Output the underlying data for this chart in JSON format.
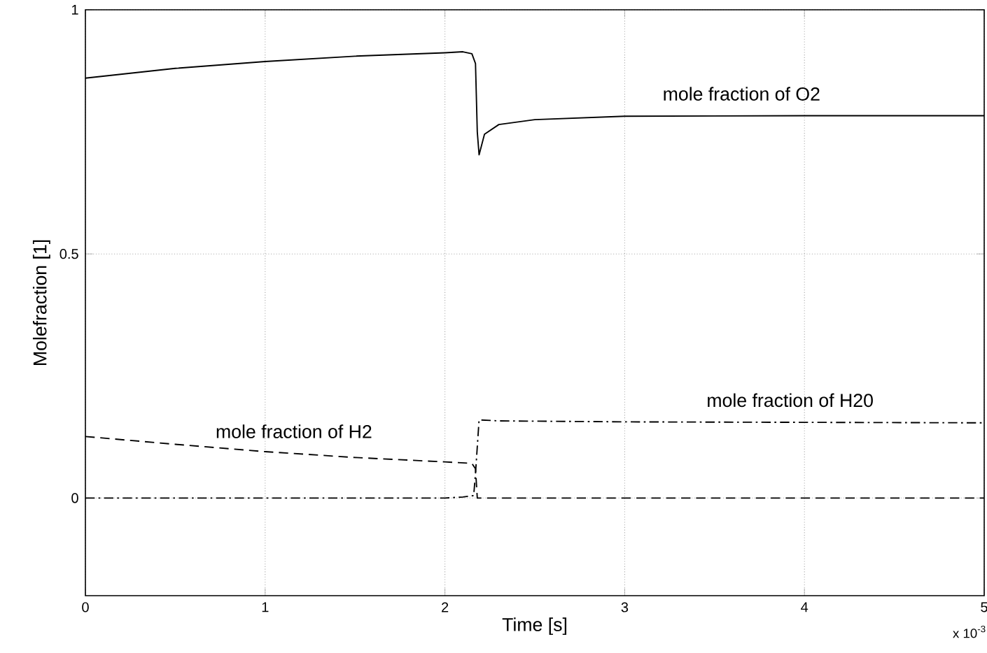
{
  "chart_data": {
    "type": "line",
    "xlabel": "Time [s]",
    "ylabel": "Molefraction [1]",
    "xlim": [
      0,
      5
    ],
    "ylim": [
      -0.2,
      1
    ],
    "xticks": [
      0,
      1,
      2,
      3,
      4,
      5
    ],
    "yticks": [
      0,
      0.5,
      1
    ],
    "grid": true,
    "marker": "none",
    "annotations": [
      "x 10$^{-3}$"
    ],
    "series": [
      {
        "name": "mole fraction of O2",
        "color": "#000000",
        "line_style": "solid",
        "x": [
          0,
          0.5,
          1,
          1.5,
          2,
          2.1,
          2.15,
          2.17,
          2.18,
          2.19,
          2.22,
          2.3,
          2.5,
          3,
          4,
          5
        ],
        "values": [
          0.86,
          0.88,
          0.894,
          0.905,
          0.912,
          0.914,
          0.91,
          0.89,
          0.75,
          0.703,
          0.745,
          0.765,
          0.775,
          0.782,
          0.783,
          0.783
        ]
      },
      {
        "name": "mole fraction of H2",
        "color": "#000000",
        "line_style": "dashed",
        "x": [
          0,
          0.5,
          1,
          1.5,
          2,
          2.15,
          2.17,
          2.18,
          3,
          4,
          5
        ],
        "values": [
          0.126,
          0.11,
          0.095,
          0.083,
          0.074,
          0.071,
          0.06,
          0,
          0,
          0,
          0
        ]
      },
      {
        "name": "mole fraction of H20",
        "color": "#000000",
        "line_style": "dashdot",
        "x": [
          0,
          1,
          2,
          2.1,
          2.16,
          2.17,
          2.19,
          2.3,
          3,
          4,
          5
        ],
        "values": [
          0,
          0,
          0,
          0.002,
          0.005,
          0.05,
          0.16,
          0.158,
          0.156,
          0.155,
          0.154
        ]
      }
    ]
  }
}
